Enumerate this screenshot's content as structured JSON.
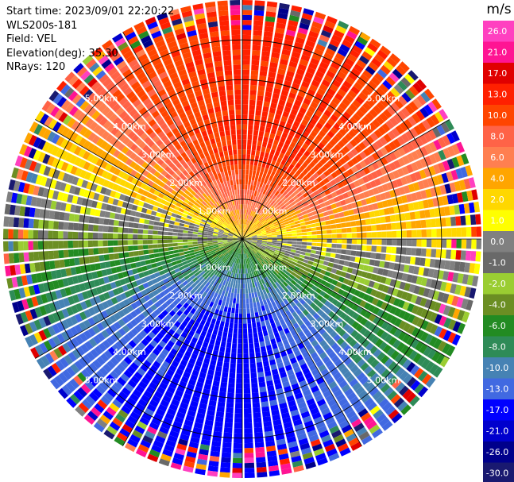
{
  "header": {
    "start_time": "Start time: 2023/09/01 22:20:22",
    "instrument": "WLS200s-181",
    "field": "Field: VEL",
    "elevation": "Elevation(deg): 35.30",
    "nrays": "NRays: 120"
  },
  "chart_data": {
    "type": "heatmap",
    "projection": "polar-ppi",
    "field": "VEL",
    "units": "m/s",
    "n_rays": 120,
    "elevation_deg": 35.3,
    "range_rings_km": [
      1.0,
      2.0,
      3.0,
      4.0,
      5.0
    ],
    "ring_labels": [
      "1.00km",
      "2.00km",
      "3.00km",
      "4.00km",
      "5.00km"
    ],
    "max_range_km": 6.0,
    "grid": true,
    "colorbar": {
      "title": "m/s",
      "placement": "right",
      "tick_labels": [
        "26.0",
        "21.0",
        "17.0",
        "13.0",
        "10.0",
        "8.0",
        "6.0",
        "4.0",
        "2.0",
        "1.0",
        "0.0",
        "-1.0",
        "-2.0",
        "-4.0",
        "-6.0",
        "-8.0",
        "-10.0",
        "-13.0",
        "-17.0",
        "-21.0",
        "-26.0",
        "-30.0"
      ],
      "bins": [
        {
          "min": 26,
          "max": 30,
          "color": "#ff40c0"
        },
        {
          "min": 21,
          "max": 26,
          "color": "#ff1493"
        },
        {
          "min": 17,
          "max": 21,
          "color": "#e00000"
        },
        {
          "min": 13,
          "max": 17,
          "color": "#ff2000"
        },
        {
          "min": 10,
          "max": 13,
          "color": "#ff4500"
        },
        {
          "min": 8,
          "max": 10,
          "color": "#ff6347"
        },
        {
          "min": 6,
          "max": 8,
          "color": "#ff7f50"
        },
        {
          "min": 4,
          "max": 6,
          "color": "#ffa500"
        },
        {
          "min": 2,
          "max": 4,
          "color": "#ffd700"
        },
        {
          "min": 1,
          "max": 2,
          "color": "#ffff00"
        },
        {
          "min": 0,
          "max": 1,
          "color": "#808080"
        },
        {
          "min": -1,
          "max": 0,
          "color": "#696969"
        },
        {
          "min": -2,
          "max": -1,
          "color": "#9acd32"
        },
        {
          "min": -4,
          "max": -2,
          "color": "#6b8e23"
        },
        {
          "min": -6,
          "max": -4,
          "color": "#228b22"
        },
        {
          "min": -8,
          "max": -6,
          "color": "#2e8b57"
        },
        {
          "min": -10,
          "max": -8,
          "color": "#4682b4"
        },
        {
          "min": -13,
          "max": -10,
          "color": "#4169e1"
        },
        {
          "min": -17,
          "max": -13,
          "color": "#0000ff"
        },
        {
          "min": -21,
          "max": -17,
          "color": "#0000cd"
        },
        {
          "min": -26,
          "max": -21,
          "color": "#00008b"
        },
        {
          "min": -30,
          "max": -26,
          "color": "#191970"
        }
      ]
    },
    "velocity_pattern": {
      "description_free": true,
      "peak_positive_ms": 14,
      "peak_negative_ms": -15,
      "positive_toward_azimuth_deg": 10,
      "aliasing_noise_beyond_km": 5.2
    }
  }
}
